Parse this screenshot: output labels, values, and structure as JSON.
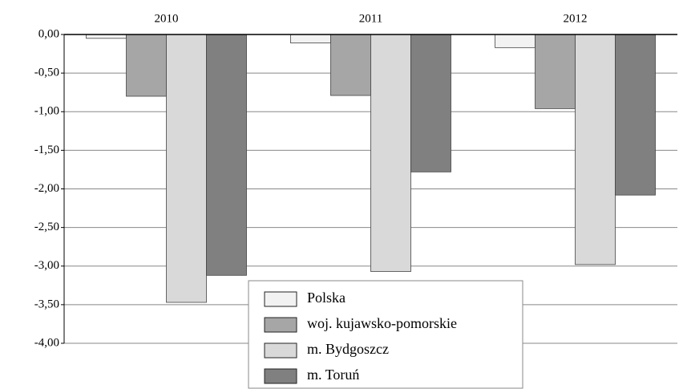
{
  "chart_data": {
    "type": "bar",
    "categories": [
      "2010",
      "2011",
      "2012"
    ],
    "series": [
      {
        "name": "Polska",
        "color": "#f2f2f2",
        "values": [
          -0.05,
          -0.11,
          -0.17
        ]
      },
      {
        "name": "woj. kujawsko-pomorskie",
        "color": "#a6a6a6",
        "values": [
          -0.8,
          -0.79,
          -0.96
        ]
      },
      {
        "name": "m. Bydgoszcz",
        "color": "#d9d9d9",
        "values": [
          -3.47,
          -3.07,
          -2.98
        ]
      },
      {
        "name": "m. Toruń",
        "color": "#808080",
        "values": [
          -3.12,
          -1.78,
          -2.08
        ]
      }
    ],
    "ylim": [
      -4,
      0
    ],
    "yticks": [
      {
        "value": 0,
        "label": "0,00"
      },
      {
        "value": -0.5,
        "label": "-0,50"
      },
      {
        "value": -1,
        "label": "-1,00"
      },
      {
        "value": -1.5,
        "label": "-1,50"
      },
      {
        "value": -2,
        "label": "-2,00"
      },
      {
        "value": -2.5,
        "label": "-2,50"
      },
      {
        "value": -3,
        "label": "-3,00"
      },
      {
        "value": -3.5,
        "label": "-3,50"
      },
      {
        "value": -4,
        "label": "-4,00"
      }
    ],
    "grid": true,
    "legend": "bottom"
  }
}
